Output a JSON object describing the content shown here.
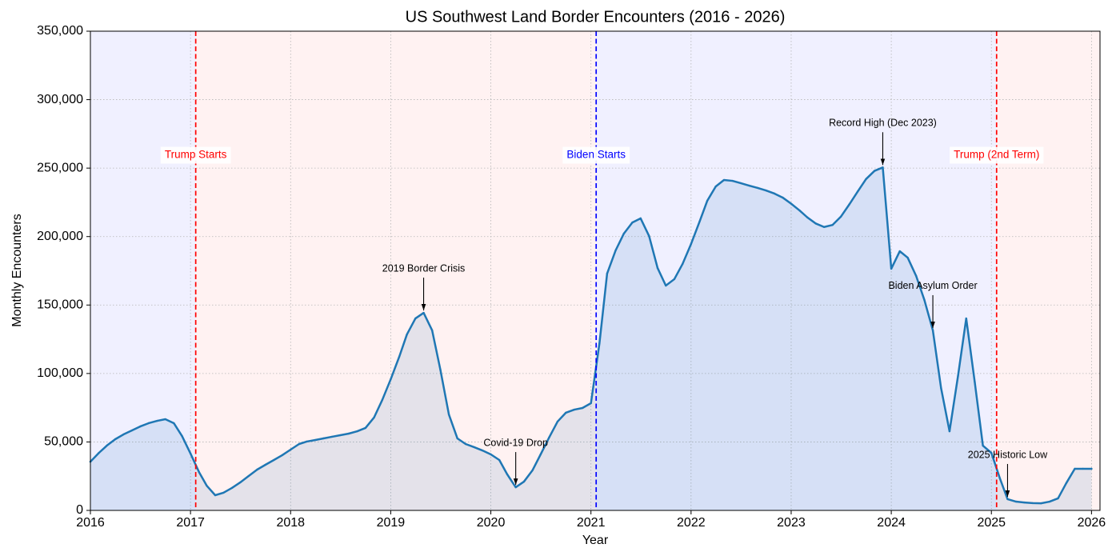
{
  "chart_data": {
    "type": "line",
    "title": "US Southwest Land Border Encounters (2016 - 2026)",
    "xlabel": "Year",
    "ylabel": "Monthly Encounters",
    "xlim": [
      "2016-01-01",
      "2026-02-01"
    ],
    "ylim": [
      0,
      350000
    ],
    "xticks": [
      "2016",
      "2017",
      "2018",
      "2019",
      "2020",
      "2021",
      "2022",
      "2023",
      "2024",
      "2025",
      "2026"
    ],
    "yticks": [
      0,
      50000,
      100000,
      150000,
      200000,
      250000,
      300000,
      350000
    ],
    "ytick_labels": [
      "0",
      "50,000",
      "100,000",
      "150,000",
      "200,000",
      "250,000",
      "300,000",
      "350,000"
    ],
    "grid": true,
    "line_color": "#1f77b4",
    "x": [
      "2016-01",
      "2016-02",
      "2016-03",
      "2016-04",
      "2016-05",
      "2016-06",
      "2016-07",
      "2016-08",
      "2016-09",
      "2016-10",
      "2016-11",
      "2016-12",
      "2017-01",
      "2017-02",
      "2017-03",
      "2017-04",
      "2017-05",
      "2017-06",
      "2017-07",
      "2017-08",
      "2017-09",
      "2017-10",
      "2017-11",
      "2017-12",
      "2018-01",
      "2018-02",
      "2018-03",
      "2018-04",
      "2018-05",
      "2018-06",
      "2018-07",
      "2018-08",
      "2018-09",
      "2018-10",
      "2018-11",
      "2018-12",
      "2019-01",
      "2019-02",
      "2019-03",
      "2019-04",
      "2019-05",
      "2019-06",
      "2019-07",
      "2019-08",
      "2019-09",
      "2019-10",
      "2019-11",
      "2019-12",
      "2020-01",
      "2020-02",
      "2020-03",
      "2020-04",
      "2020-05",
      "2020-06",
      "2020-07",
      "2020-08",
      "2020-09",
      "2020-10",
      "2020-11",
      "2020-12",
      "2021-01",
      "2021-02",
      "2021-03",
      "2021-04",
      "2021-05",
      "2021-06",
      "2021-07",
      "2021-08",
      "2021-09",
      "2021-10",
      "2021-11",
      "2021-12",
      "2022-01",
      "2022-02",
      "2022-03",
      "2022-04",
      "2022-05",
      "2022-06",
      "2022-07",
      "2022-08",
      "2022-09",
      "2022-10",
      "2022-11",
      "2022-12",
      "2023-01",
      "2023-02",
      "2023-03",
      "2023-04",
      "2023-05",
      "2023-06",
      "2023-07",
      "2023-08",
      "2023-09",
      "2023-10",
      "2023-11",
      "2023-12",
      "2024-01",
      "2024-02",
      "2024-03",
      "2024-04",
      "2024-05",
      "2024-06",
      "2024-07",
      "2024-08",
      "2024-09",
      "2024-10",
      "2024-11",
      "2024-12",
      "2025-01",
      "2025-02",
      "2025-03",
      "2025-04",
      "2025-05",
      "2025-06",
      "2025-07",
      "2025-08",
      "2025-09",
      "2025-10",
      "2025-11",
      "2025-12",
      "2026-01"
    ],
    "values": [
      35600,
      42000,
      47300,
      52000,
      55500,
      58400,
      61300,
      63700,
      65400,
      66600,
      63700,
      54300,
      41500,
      28000,
      18100,
      11100,
      12900,
      16400,
      20400,
      25100,
      29800,
      33300,
      36800,
      40300,
      44400,
      48500,
      50300,
      51400,
      52600,
      53800,
      54900,
      56100,
      57800,
      60200,
      67800,
      80600,
      95800,
      112200,
      128500,
      140200,
      144300,
      131500,
      102800,
      70100,
      52600,
      48500,
      46200,
      43800,
      40900,
      36800,
      26300,
      16900,
      21000,
      29200,
      40900,
      53200,
      64900,
      71300,
      73600,
      74800,
      78300,
      122000,
      173000,
      189900,
      202200,
      210300,
      213300,
      200400,
      177000,
      164200,
      168900,
      180000,
      194600,
      210900,
      226100,
      236600,
      241300,
      240700,
      239000,
      237200,
      235500,
      233700,
      231400,
      228500,
      224000,
      219000,
      214000,
      209500,
      207000,
      208500,
      214500,
      223500,
      233000,
      242000,
      248000,
      250500,
      176500,
      189300,
      184600,
      171200,
      153700,
      131500,
      89400,
      57800,
      98200,
      140200,
      94000,
      47300,
      42000,
      23400,
      8200,
      6400,
      5800,
      5300,
      5200,
      6400,
      8800,
      19900,
      30400,
      30400,
      30400
    ],
    "events": [
      {
        "label": "Trump Starts",
        "date": "2017-01-20",
        "color": "#FF0000"
      },
      {
        "label": "Biden Starts",
        "date": "2021-01-20",
        "color": "#0000FF"
      },
      {
        "label": "Trump (2nd Term)",
        "date": "2025-01-20",
        "color": "#FF0000"
      }
    ],
    "periods": [
      {
        "from": "2016-01-01",
        "to": "2017-01-20",
        "color": "#0000FF"
      },
      {
        "from": "2017-01-20",
        "to": "2021-01-20",
        "color": "#FF0000"
      },
      {
        "from": "2021-01-20",
        "to": "2025-01-20",
        "color": "#0000FF"
      },
      {
        "from": "2025-01-20",
        "to": "2026-02-01",
        "color": "#FF0000"
      }
    ],
    "annotations": [
      {
        "text": "2019 Border Crisis",
        "x": "2019-05",
        "y": 144300
      },
      {
        "text": "Covid-19 Drop",
        "x": "2020-04",
        "y": 16900
      },
      {
        "text": "Record High (Dec 2023)",
        "x": "2023-12",
        "y": 250500
      },
      {
        "text": "Biden Asylum Order",
        "x": "2024-06",
        "y": 131500
      },
      {
        "text": "2025 Historic Low",
        "x": "2025-03",
        "y": 8200
      }
    ]
  }
}
